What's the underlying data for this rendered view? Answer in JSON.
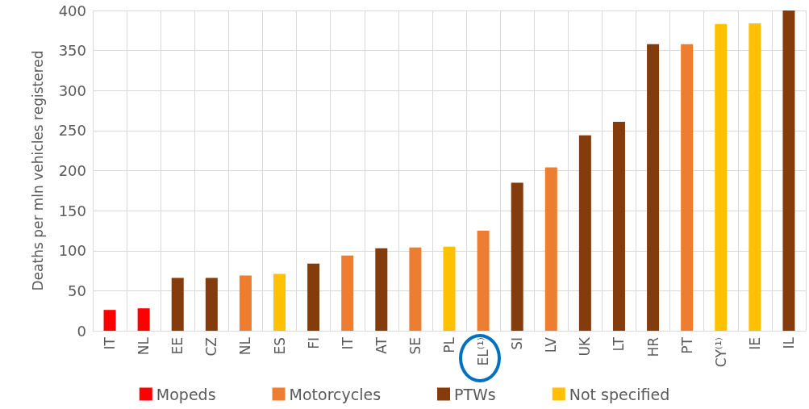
{
  "chart_data": {
    "type": "bar",
    "ylabel": "Deaths per mln vehicles registered",
    "categories": [
      "IT",
      "NL",
      "EE",
      "CZ",
      "NL",
      "ES",
      "FI",
      "IT",
      "AT",
      "SE",
      "PL",
      "EL⁽¹⁾",
      "SI",
      "LV",
      "UK",
      "LT",
      "HR",
      "PT",
      "CY⁽¹⁾",
      "IE",
      "IL"
    ],
    "series": [
      {
        "name": "Mopeds",
        "color": "#ff0000",
        "values": [
          26,
          28,
          null,
          null,
          null,
          null,
          null,
          null,
          null,
          null,
          null,
          null,
          null,
          null,
          null,
          null,
          null,
          null,
          null,
          null,
          null
        ]
      },
      {
        "name": "Motorcycles",
        "color": "#ed7d31",
        "values": [
          null,
          null,
          null,
          null,
          69,
          null,
          null,
          94,
          null,
          104,
          null,
          125,
          null,
          204,
          null,
          null,
          null,
          358,
          null,
          null,
          null
        ]
      },
      {
        "name": "PTWs",
        "color": "#843c0c",
        "values": [
          null,
          null,
          66,
          66,
          null,
          null,
          84,
          null,
          103,
          null,
          null,
          null,
          185,
          null,
          244,
          261,
          358,
          null,
          null,
          null,
          400
        ]
      },
      {
        "name": "Not specified",
        "color": "#ffc000",
        "values": [
          null,
          null,
          null,
          null,
          null,
          71,
          null,
          null,
          null,
          null,
          105,
          null,
          null,
          null,
          null,
          null,
          null,
          null,
          383,
          384,
          null
        ]
      }
    ],
    "ylim": [
      0,
      400
    ],
    "yticks": [
      0,
      50,
      100,
      150,
      200,
      250,
      300,
      350,
      400
    ],
    "grid": true,
    "legend": "bottom"
  }
}
